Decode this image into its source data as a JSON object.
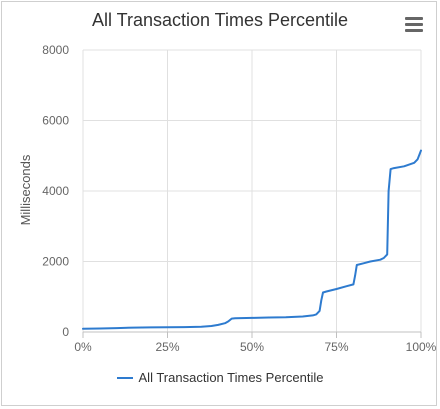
{
  "chart_data": {
    "type": "line",
    "title": "All Transaction Times Percentile",
    "xlabel": "",
    "ylabel": "Milliseconds",
    "xlim": [
      0,
      100
    ],
    "ylim": [
      0,
      8000
    ],
    "x_ticks": [
      0,
      25,
      50,
      75,
      100
    ],
    "x_tick_labels": [
      "0%",
      "25%",
      "50%",
      "75%",
      "100%"
    ],
    "y_ticks": [
      0,
      2000,
      4000,
      6000,
      8000
    ],
    "y_tick_labels": [
      "0",
      "2000",
      "4000",
      "6000",
      "8000"
    ],
    "grid": "vertical-and-horizontal",
    "legend_position": "bottom-center",
    "series": [
      {
        "name": "All Transaction Times Percentile",
        "color": "#2e7bcf",
        "x": [
          0,
          5,
          10,
          15,
          20,
          25,
          30,
          35,
          38,
          40,
          42,
          43,
          44,
          45,
          50,
          55,
          60,
          65,
          68,
          69,
          70,
          70.5,
          71,
          72,
          75,
          78,
          80,
          80.5,
          81,
          83,
          85,
          88,
          89,
          90,
          90.4,
          91,
          92,
          95,
          98,
          99,
          100
        ],
        "y": [
          90,
          100,
          110,
          125,
          130,
          135,
          140,
          150,
          170,
          200,
          250,
          300,
          380,
          390,
          400,
          410,
          420,
          440,
          470,
          500,
          600,
          900,
          1120,
          1150,
          1220,
          1300,
          1350,
          1600,
          1900,
          1950,
          2000,
          2050,
          2100,
          2200,
          4000,
          4620,
          4650,
          4700,
          4800,
          4900,
          5150
        ]
      }
    ]
  },
  "legend": {
    "label": "All Transaction Times Percentile"
  },
  "icons": {
    "menu": "hamburger-menu-icon"
  }
}
